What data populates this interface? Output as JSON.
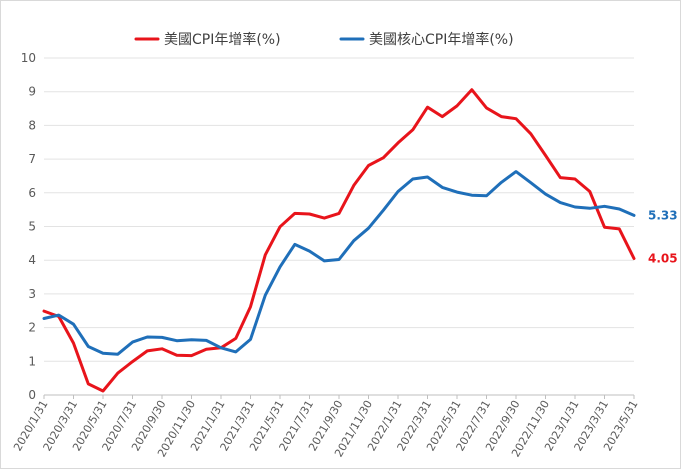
{
  "chart_data": {
    "type": "line",
    "title": "",
    "xlabel": "",
    "ylabel": "",
    "ylim": [
      0,
      10
    ],
    "yticks": [
      "0",
      "1",
      "2",
      "3",
      "4",
      "5",
      "6",
      "7",
      "8",
      "9",
      "10"
    ],
    "grid": "horizontal",
    "legend_position": "top",
    "x": [
      "2020/1/31",
      "2020/2/29",
      "2020/3/31",
      "2020/4/30",
      "2020/5/31",
      "2020/6/30",
      "2020/7/31",
      "2020/8/31",
      "2020/9/30",
      "2020/10/31",
      "2020/11/30",
      "2020/12/31",
      "2021/1/31",
      "2021/2/28",
      "2021/3/31",
      "2021/4/30",
      "2021/5/31",
      "2021/6/30",
      "2021/7/31",
      "2021/8/31",
      "2021/9/30",
      "2021/10/31",
      "2021/11/30",
      "2021/12/31",
      "2022/1/31",
      "2022/2/28",
      "2022/3/31",
      "2022/4/30",
      "2022/5/31",
      "2022/6/30",
      "2022/7/31",
      "2022/8/31",
      "2022/9/30",
      "2022/10/31",
      "2022/11/30",
      "2022/12/31",
      "2023/1/31",
      "2023/2/28",
      "2023/3/31",
      "2023/4/30",
      "2023/5/31"
    ],
    "xtick_labels": [
      "2020/1/31",
      "2020/3/31",
      "2020/5/31",
      "2020/7/31",
      "2020/9/30",
      "2020/11/30",
      "2021/1/31",
      "2021/3/31",
      "2021/5/31",
      "2021/7/31",
      "2021/9/30",
      "2021/11/30",
      "2022/1/31",
      "2022/3/31",
      "2022/5/31",
      "2022/7/31",
      "2022/9/30",
      "2022/11/30",
      "2023/1/31",
      "2023/3/31",
      "2023/5/31"
    ],
    "series": [
      {
        "name": "美國CPI年增率(%)",
        "color": "#e8141b",
        "values": [
          2.49,
          2.33,
          1.54,
          0.33,
          0.12,
          0.65,
          0.99,
          1.31,
          1.37,
          1.18,
          1.17,
          1.36,
          1.4,
          1.68,
          2.62,
          4.16,
          4.99,
          5.39,
          5.37,
          5.25,
          5.39,
          6.22,
          6.81,
          7.04,
          7.48,
          7.87,
          8.54,
          8.26,
          8.58,
          9.06,
          8.52,
          8.26,
          8.2,
          7.75,
          7.11,
          6.45,
          6.41,
          6.04,
          4.98,
          4.93,
          4.05
        ]
      },
      {
        "name": "美國核心CPI年增率(%)",
        "color": "#1f6fb9",
        "values": [
          2.27,
          2.37,
          2.1,
          1.44,
          1.24,
          1.21,
          1.57,
          1.72,
          1.71,
          1.61,
          1.64,
          1.62,
          1.4,
          1.28,
          1.65,
          2.96,
          3.8,
          4.47,
          4.27,
          3.98,
          4.02,
          4.58,
          4.95,
          5.48,
          6.04,
          6.41,
          6.47,
          6.16,
          6.02,
          5.93,
          5.91,
          6.31,
          6.63,
          6.3,
          5.96,
          5.71,
          5.58,
          5.54,
          5.6,
          5.52,
          5.33
        ]
      }
    ],
    "end_labels": [
      {
        "text": "4.05",
        "color": "#e8141b"
      },
      {
        "text": "5.33",
        "color": "#1f6fb9"
      }
    ]
  }
}
